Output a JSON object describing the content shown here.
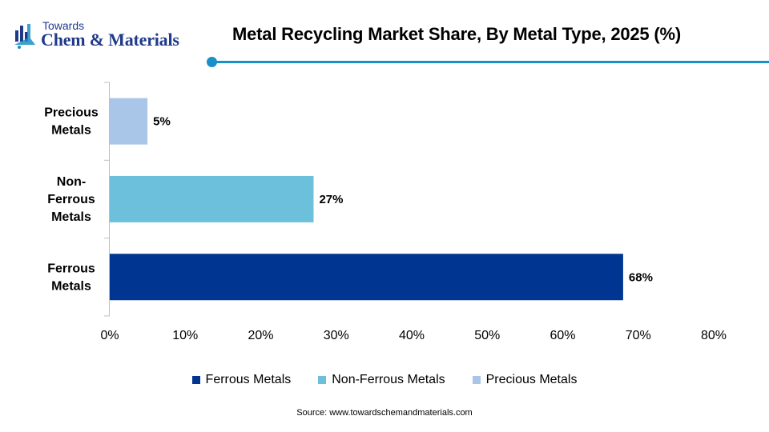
{
  "header": {
    "logo_top": "Towards",
    "logo_brand": "Chem & Materials",
    "title": "Metal Recycling Market Share, By Metal Type, 2025 (%)"
  },
  "chart_data": {
    "type": "bar",
    "orientation": "horizontal",
    "title": "Metal Recycling Market Share, By Metal Type, 2025 (%)",
    "categories": [
      "Precious Metals",
      "Non-Ferrous Metals",
      "Ferrous Metals"
    ],
    "category_labels": [
      [
        "Precious",
        "Metals"
      ],
      [
        "Non-",
        "Ferrous",
        "Metals"
      ],
      [
        "Ferrous",
        "Metals"
      ]
    ],
    "values": [
      5,
      27,
      68
    ],
    "value_labels": [
      "5%",
      "27%",
      "68%"
    ],
    "colors": [
      "#a9c6e8",
      "#6cc0dc",
      "#003591"
    ],
    "xlim": [
      0,
      80
    ],
    "x_ticks": [
      0,
      10,
      20,
      30,
      40,
      50,
      60,
      70,
      80
    ],
    "x_tick_labels": [
      "0%",
      "10%",
      "20%",
      "30%",
      "40%",
      "50%",
      "60%",
      "70%",
      "80%"
    ],
    "grid": false,
    "legend_position": "bottom",
    "legend": [
      {
        "label": "Ferrous Metals",
        "color": "#003591"
      },
      {
        "label": "Non-Ferrous Metals",
        "color": "#6cc0dc"
      },
      {
        "label": "Precious Metals",
        "color": "#a9c6e8"
      }
    ]
  },
  "source": "Source: www.towardschemandmaterials.com"
}
